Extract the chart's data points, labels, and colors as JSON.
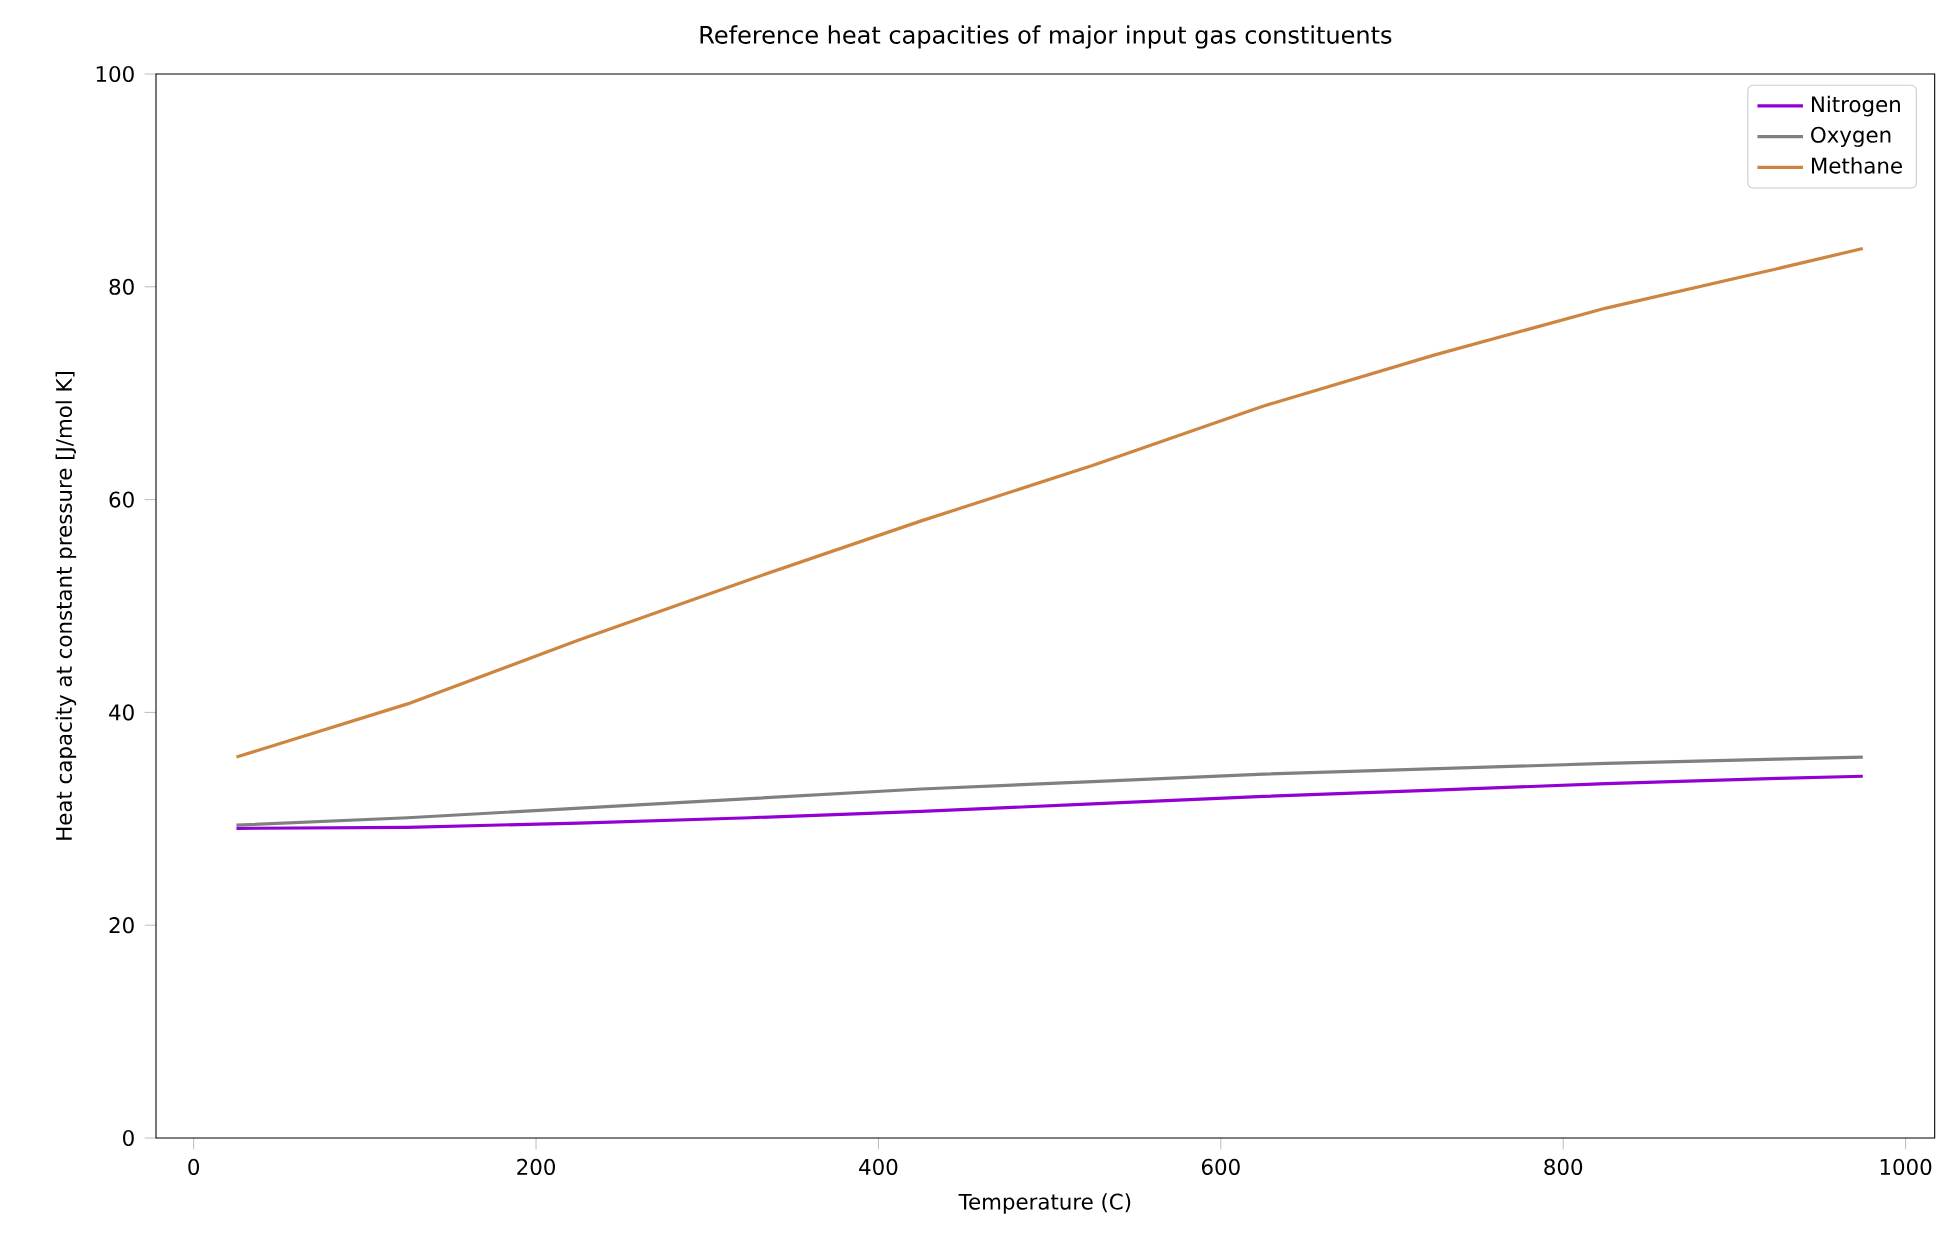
{
  "chart_data": {
    "type": "line",
    "title": "Reference heat capacities of major input gas constituents",
    "xlabel": "Temperature (C)",
    "ylabel": "Heat capacity at constant pressure [J/mol K]",
    "x": [
      25,
      125,
      225,
      325,
      425,
      525,
      625,
      725,
      825,
      925,
      975
    ],
    "series": [
      {
        "name": "Nitrogen",
        "color": "#9400d3",
        "values": [
          29.1,
          29.2,
          29.6,
          30.1,
          30.7,
          31.4,
          32.1,
          32.7,
          33.3,
          33.8,
          34.0
        ]
      },
      {
        "name": "Oxygen",
        "color": "#808080",
        "values": [
          29.4,
          30.1,
          31.0,
          31.9,
          32.8,
          33.5,
          34.2,
          34.7,
          35.2,
          35.6,
          35.8
        ]
      },
      {
        "name": "Methane",
        "color": "#cd853f",
        "values": [
          35.8,
          40.8,
          46.8,
          52.5,
          58.0,
          63.2,
          68.8,
          73.6,
          78.0,
          81.7,
          83.6
        ]
      }
    ],
    "xlim": [
      -22,
      1017
    ],
    "ylim": [
      0,
      100
    ],
    "xticks": [
      0,
      200,
      400,
      600,
      800,
      1000
    ],
    "yticks": [
      0,
      20,
      40,
      60,
      80,
      100
    ],
    "legend": "top right",
    "grid": false
  }
}
